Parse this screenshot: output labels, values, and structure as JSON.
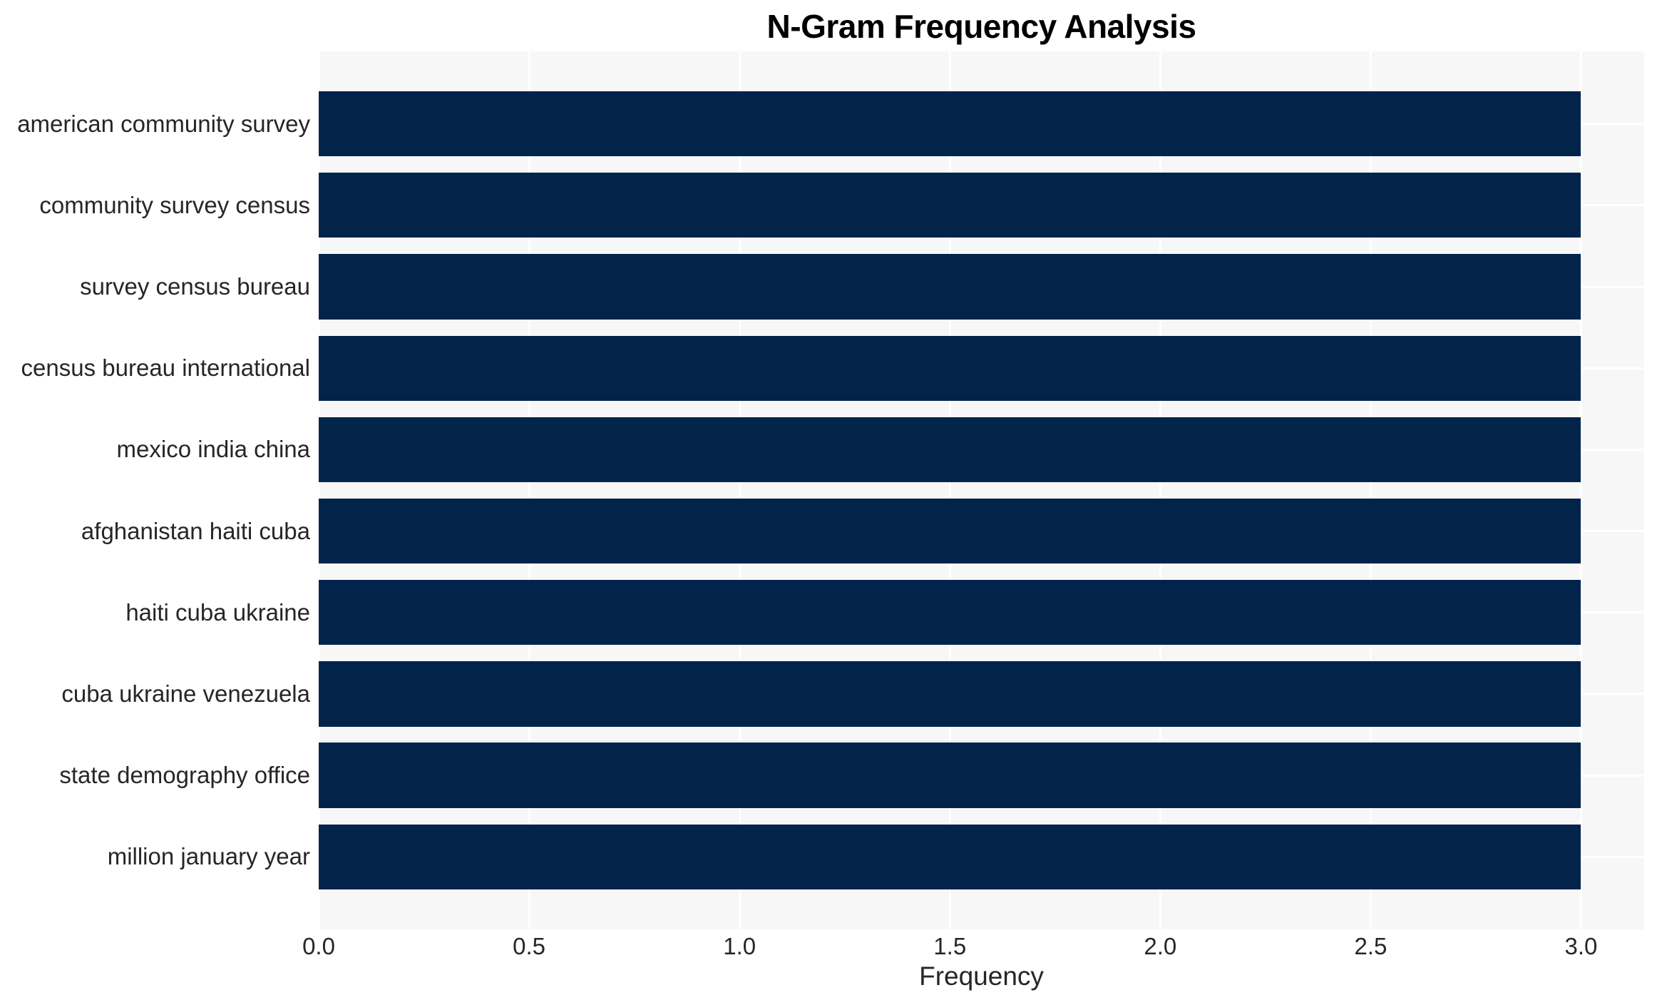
{
  "chart_data": {
    "type": "bar",
    "orientation": "horizontal",
    "title": "N-Gram Frequency Analysis",
    "xlabel": "Frequency",
    "ylabel": "",
    "categories": [
      "american community survey",
      "community survey census",
      "survey census bureau",
      "census bureau international",
      "mexico india china",
      "afghanistan haiti cuba",
      "haiti cuba ukraine",
      "cuba ukraine venezuela",
      "state demography office",
      "million january year"
    ],
    "values": [
      3,
      3,
      3,
      3,
      3,
      3,
      3,
      3,
      3,
      3
    ],
    "xlim": [
      0,
      3.15
    ],
    "xticks": [
      0,
      0.5,
      1,
      1.5,
      2,
      2.5,
      3
    ],
    "xtick_labels": [
      "0.0",
      "0.5",
      "1.0",
      "1.5",
      "2.0",
      "2.5",
      "3.0"
    ],
    "grid": "on",
    "legend": "none",
    "colors": {
      "bar": "#02234a",
      "plot_background": "#f7f7f8",
      "grid_line": "#ffffff",
      "figure_background": "#ffffff",
      "tick_text": "#262626",
      "title_text": "#000000"
    }
  }
}
